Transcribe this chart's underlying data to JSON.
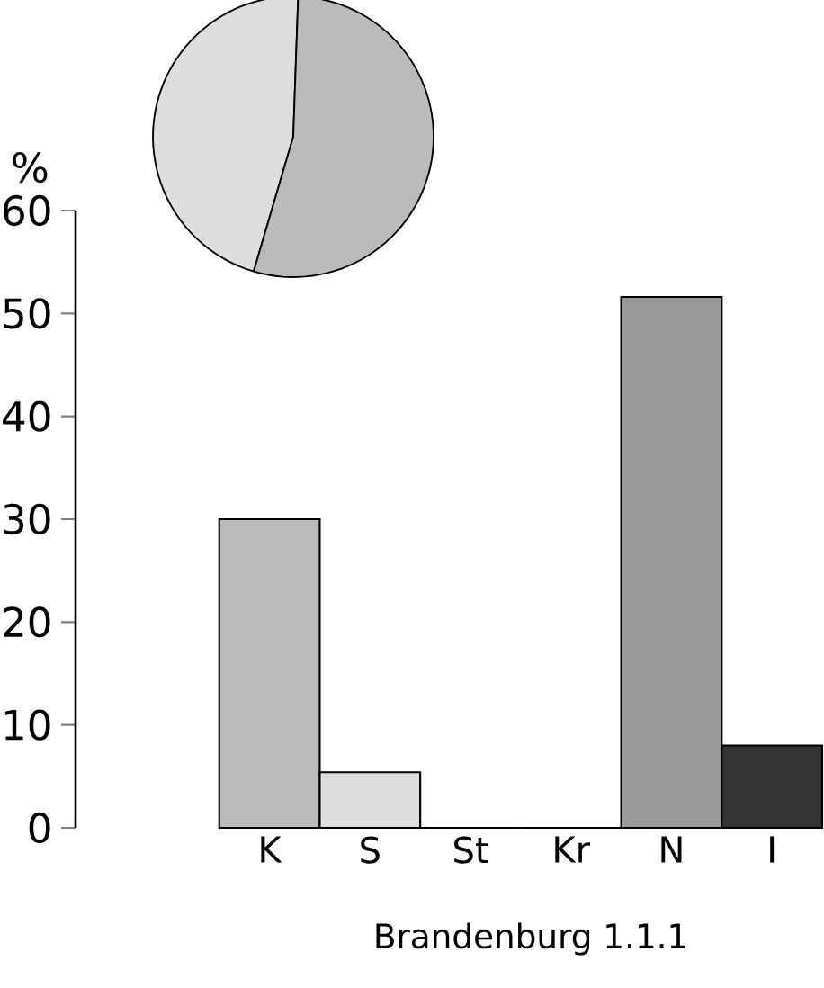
{
  "chart_data": [
    {
      "type": "bar",
      "ylabel": "%",
      "xlabel": "Brandenburg 1.1.1",
      "categories": [
        "K",
        "S",
        "St",
        "Kr",
        "N",
        "I"
      ],
      "values": [
        30,
        5.4,
        0,
        0,
        51.6,
        8
      ],
      "colors": [
        "#bbbbbb",
        "#dddddd",
        "#000000",
        "#000000",
        "#999999",
        "#333333"
      ],
      "ylim": [
        0,
        60
      ],
      "yticks": [
        0,
        10,
        20,
        30,
        40,
        50,
        60
      ]
    },
    {
      "type": "pie",
      "categories": [
        null,
        null
      ],
      "values": [
        46,
        54
      ],
      "colors": [
        "#dddddd",
        "#bbbbbb"
      ]
    }
  ]
}
